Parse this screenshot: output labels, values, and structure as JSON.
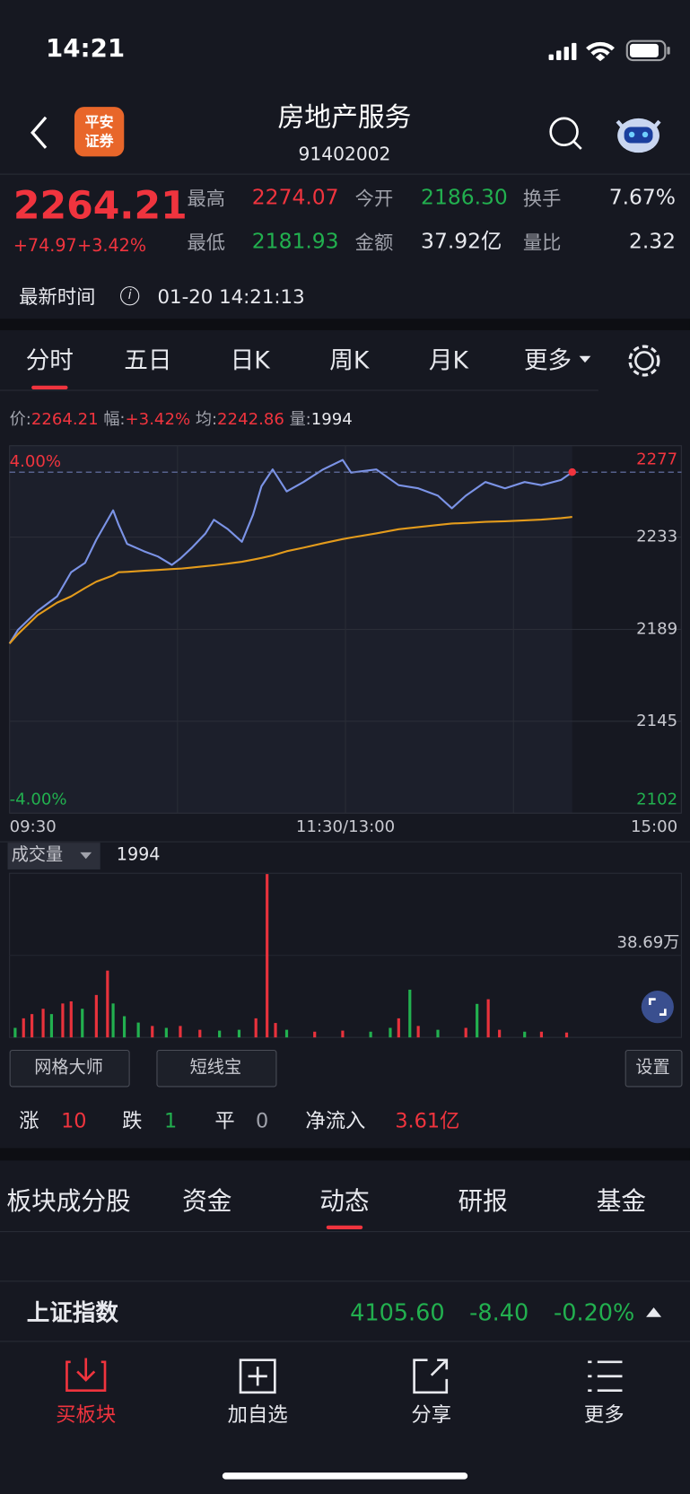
{
  "status_bar": {
    "time": "14:21"
  },
  "header": {
    "logo": [
      "平安",
      "证券"
    ],
    "title": "房地产服务",
    "code": "91402002"
  },
  "quote": {
    "price": "2264.21",
    "change": "+74.97",
    "change_pct": "+3.42%",
    "stats": [
      {
        "label": "最高",
        "value": "2274.07"
      },
      {
        "label": "今开",
        "value": "2186.30"
      },
      {
        "label": "换手",
        "value": "7.67%"
      },
      {
        "label": "最低",
        "value": "2181.93"
      },
      {
        "label": "金额",
        "value": "37.92亿"
      },
      {
        "label": "量比",
        "value": "2.32"
      }
    ],
    "time_label": "最新时间",
    "time": "01-20 14:21:13"
  },
  "period_tabs": [
    "分时",
    "五日",
    "日K",
    "周K",
    "月K",
    "更多"
  ],
  "price_info": [
    {
      "label": "价:",
      "value": "2264.21"
    },
    {
      "label": "幅:",
      "value": "+3.42%"
    },
    {
      "label": "均:",
      "value": "2242.86"
    },
    {
      "label": "量:",
      "value": "1994"
    }
  ],
  "chart_data": [
    {
      "type": "line",
      "xlim": [
        0,
        240
      ],
      "xticks": [
        {
          "value": 0,
          "label": "09:30"
        },
        {
          "value": 120,
          "label": "11:30/13:00"
        },
        {
          "value": 240,
          "label": "15:00"
        }
      ],
      "ylim": [
        2101.67,
        2276.81
      ],
      "yticks": [
        {
          "value": 2276.81,
          "label": "2277"
        },
        {
          "value": 2233.24,
          "label": "2233"
        },
        {
          "value": 2189.24,
          "label": "2189"
        },
        {
          "value": 2145.46,
          "label": "2145"
        },
        {
          "value": 2101.67,
          "label": "2102"
        }
      ],
      "y2lim": [
        -4,
        4
      ],
      "y2ticks": [
        {
          "value": 4,
          "label": "4.00%"
        },
        {
          "value": -4,
          "label": "-4.00%"
        }
      ],
      "grid": true,
      "x": [
        0,
        3,
        10,
        17,
        22,
        27,
        31,
        34,
        37,
        39,
        42,
        48,
        53,
        58,
        61,
        65,
        70,
        73,
        78,
        83,
        87,
        90,
        94,
        99,
        105,
        112,
        119,
        122,
        131,
        139,
        146,
        153,
        158,
        163,
        170,
        177,
        184,
        190,
        197,
        201
      ],
      "series": [
        {
          "color": "#7b93e6",
          "values": [
            2182.5,
            2189,
            2198,
            2205,
            2216.5,
            2221,
            2232,
            2239,
            2246,
            2239,
            2230,
            2226.5,
            2224,
            2220,
            2223,
            2228,
            2235,
            2241.5,
            2237,
            2231,
            2244,
            2257.5,
            2265.5,
            2255,
            2259.5,
            2265.5,
            2270,
            2264,
            2265.5,
            2258,
            2256.5,
            2253,
            2247,
            2253,
            2259.5,
            2256.5,
            2259.5,
            2258,
            2260.5,
            2264.21
          ]
        },
        {
          "color": "#e39b1c",
          "values": [
            2182.5,
            2187,
            2196,
            2202,
            2205,
            2209,
            2212,
            2213.5,
            2215,
            2216.5,
            2216.7,
            2217.2,
            2217.6,
            2218,
            2218.2,
            2218.7,
            2219.4,
            2219.8,
            2220.6,
            2221.5,
            2222.5,
            2223.3,
            2224.5,
            2226.5,
            2228.2,
            2230.3,
            2232.3,
            2233,
            2235,
            2237,
            2238,
            2239,
            2239.7,
            2240,
            2240.5,
            2240.8,
            2241.2,
            2241.6,
            2242.3,
            2242.86
          ]
        }
      ]
    },
    {
      "type": "bar",
      "title": "成交量",
      "annotation": "1994",
      "xlim": [
        0,
        240
      ],
      "ylim": [
        0,
        77.38
      ],
      "yticks": [
        {
          "value": 38.69,
          "label": "38.69万"
        }
      ],
      "x": [
        2,
        5,
        8,
        12,
        15,
        19,
        22,
        26,
        31,
        35,
        37,
        41,
        46,
        51,
        56,
        61,
        68,
        75,
        82,
        88,
        92,
        95,
        99,
        109,
        119,
        129,
        136,
        139,
        143,
        146,
        153,
        163,
        167,
        171,
        175,
        184,
        190,
        199
      ],
      "values": [
        4.5,
        9,
        11,
        13.5,
        11,
        16,
        17,
        13.5,
        20,
        31.5,
        16,
        10,
        7,
        5.4,
        4.5,
        5.4,
        3.6,
        3.2,
        3.6,
        9,
        77,
        6.8,
        3.6,
        2.7,
        3.2,
        2.7,
        4.5,
        9,
        22.5,
        5.4,
        3.6,
        4.5,
        15.8,
        18,
        3.6,
        2.7,
        2.7,
        2.3
      ],
      "colors": [
        "#22b04f",
        "#e8323c",
        "#e8323c",
        "#e8323c",
        "#22b04f",
        "#e8323c",
        "#e8323c",
        "#22b04f",
        "#e8323c",
        "#e8323c",
        "#22b04f",
        "#22b04f",
        "#22b04f",
        "#e8323c",
        "#22b04f",
        "#e8323c",
        "#e8323c",
        "#22b04f",
        "#22b04f",
        "#e8323c",
        "#e8323c",
        "#e8323c",
        "#22b04f",
        "#e8323c",
        "#e8323c",
        "#22b04f",
        "#22b04f",
        "#e8323c",
        "#22b04f",
        "#e8323c",
        "#22b04f",
        "#e8323c",
        "#22b04f",
        "#e8323c",
        "#e8323c",
        "#22b04f",
        "#e8323c",
        "#e8323c"
      ]
    }
  ],
  "tools": [
    "网格大师",
    "短线宝",
    "设置"
  ],
  "breadth": [
    {
      "label": "涨",
      "value": "10"
    },
    {
      "label": "跌",
      "value": "1"
    },
    {
      "label": "平",
      "value": "0"
    },
    {
      "label": "净流入",
      "value": "3.61亿"
    }
  ],
  "section_tabs": [
    "板块成分股",
    "资金",
    "动态",
    "研报",
    "基金"
  ],
  "index_ticker": {
    "name": "上证指数",
    "price": "4105.60",
    "change": "-8.40",
    "change_pct": "-0.20%"
  },
  "bottom_nav": [
    "买板块",
    "加自选",
    "分享",
    "更多"
  ]
}
